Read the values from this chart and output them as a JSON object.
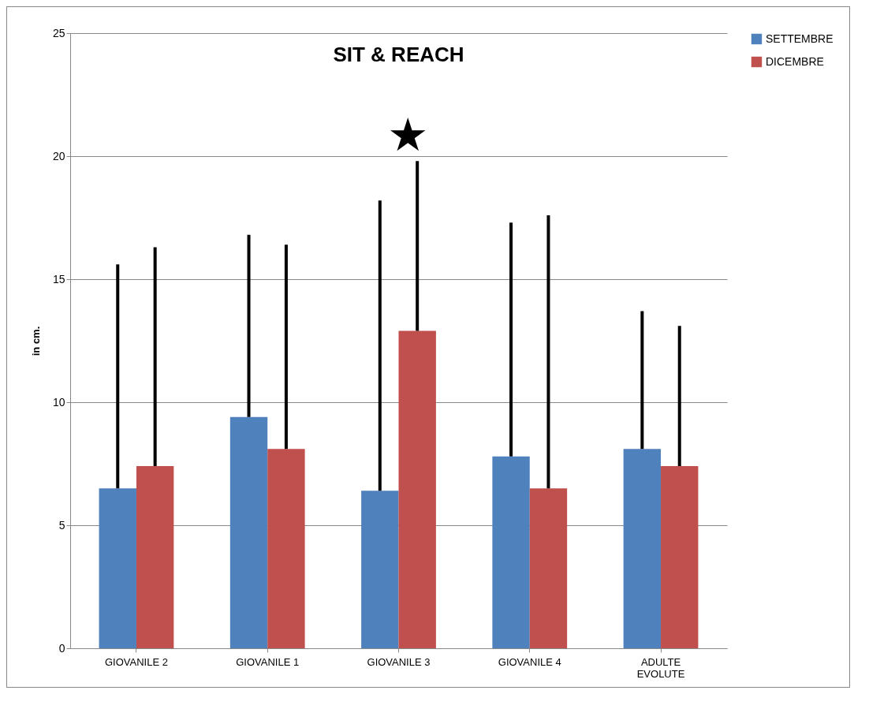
{
  "chart_data": {
    "type": "bar",
    "title": "SIT & REACH",
    "ylabel": "in cm.",
    "categories": [
      "GIOVANILE 2",
      "GIOVANILE 1",
      "GIOVANILE 3",
      "GIOVANILE 4",
      "ADULTE EVOLUTE"
    ],
    "series": [
      {
        "name": "SETTEMBRE",
        "color": "#4f81bd",
        "values": [
          6.5,
          9.4,
          6.4,
          7.8,
          8.1
        ],
        "errors": [
          [
            6.5,
            15.6
          ],
          [
            9.4,
            16.8
          ],
          [
            6.4,
            18.2
          ],
          [
            7.8,
            17.3
          ],
          [
            8.1,
            13.7
          ]
        ]
      },
      {
        "name": "DICEMBRE",
        "color": "#c0504d",
        "values": [
          7.4,
          8.1,
          12.9,
          6.5,
          7.4
        ],
        "errors": [
          [
            7.4,
            16.3
          ],
          [
            8.1,
            16.4
          ],
          [
            12.9,
            19.8
          ],
          [
            6.5,
            17.6
          ],
          [
            7.4,
            13.1
          ]
        ]
      }
    ],
    "annotations": [
      "★"
    ],
    "ylim": [
      0,
      25
    ],
    "yticks": [
      0,
      5,
      10,
      15,
      20,
      25
    ],
    "grid": "y",
    "legend": "right"
  }
}
